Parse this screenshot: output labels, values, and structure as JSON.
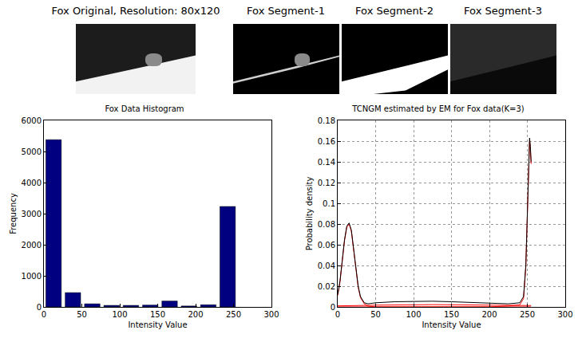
{
  "images": [
    "Fox Original, Resolution: 80x120",
    "Fox Segment-1",
    "Fox Segment-2",
    "Fox Segment-3"
  ],
  "chart_data": [
    {
      "type": "histogram",
      "title": "Fox Data Histogram",
      "x_label": "Intensity Value",
      "y_label": "Frequency",
      "bins": [
        0,
        25.5,
        51,
        76.5,
        102,
        127.5,
        153,
        178.5,
        204,
        229.5,
        255
      ],
      "values": [
        5380,
        460,
        100,
        50,
        50,
        60,
        190,
        30,
        70,
        3230
      ],
      "color": "#000080",
      "xlim": [
        0,
        300
      ],
      "xticks": [
        0,
        50,
        100,
        150,
        200,
        250,
        300
      ],
      "ylim": [
        0,
        6000
      ],
      "yticks": [
        0,
        1000,
        2000,
        3000,
        4000,
        5000,
        6000
      ],
      "grid": false
    },
    {
      "type": "line",
      "title": "TCNGM estimated by EM for Fox data(K=3)",
      "x_label": "Intensity Value",
      "y_label": "Probability density",
      "x": [
        0,
        3,
        6,
        9,
        12,
        15,
        18,
        21,
        24,
        27,
        30,
        35,
        40,
        50,
        75,
        100,
        125,
        150,
        175,
        200,
        225,
        240,
        245,
        248,
        250,
        251,
        252,
        253,
        254,
        255
      ],
      "series": [
        {
          "color": "#ff0000",
          "values": [
            0.011,
            0.024,
            0.044,
            0.064,
            0.077,
            0.08,
            0.073,
            0.055,
            0.035,
            0.019,
            0.009,
            0.003,
            0.0008,
            0,
            0,
            0,
            0,
            0,
            0,
            0,
            0,
            0,
            0,
            0,
            0,
            0,
            0,
            0,
            0,
            0
          ]
        },
        {
          "color": "#ff0000",
          "values": [
            0.001,
            0.001,
            0.001,
            0.001,
            0.001,
            0.001,
            0.001,
            0.001,
            0.0012,
            0.0012,
            0.0013,
            0.0014,
            0.0015,
            0.0017,
            0.002,
            0.0022,
            0.0022,
            0.0021,
            0.0019,
            0.0017,
            0.0015,
            0.0014,
            0.0013,
            0.0013,
            0.0013,
            0.0013,
            0.0013,
            0.0013,
            0.0013,
            0.0013
          ]
        },
        {
          "color": "#ff0000",
          "values": [
            0,
            0,
            0,
            0,
            0,
            0,
            0,
            0,
            0,
            0,
            0,
            0,
            0,
            0,
            0,
            0,
            0,
            0,
            0,
            0,
            0.001,
            0.002,
            0.008,
            0.038,
            0.088,
            0.118,
            0.153,
            0.161,
            0.153,
            0.138
          ]
        },
        {
          "color": "#000000",
          "values": [
            0.012,
            0.025,
            0.045,
            0.065,
            0.078,
            0.081,
            0.074,
            0.056,
            0.036,
            0.02,
            0.01,
            0.004,
            0.003,
            0.004,
            0.005,
            0.0055,
            0.0055,
            0.005,
            0.0045,
            0.004,
            0.003,
            0.004,
            0.01,
            0.04,
            0.09,
            0.12,
            0.155,
            0.163,
            0.155,
            0.14
          ]
        }
      ],
      "xlim": [
        0,
        300
      ],
      "xticks": [
        0,
        50,
        100,
        150,
        200,
        250,
        300
      ],
      "ylim": [
        0,
        0.18
      ],
      "yticks": [
        0,
        0.02,
        0.04,
        0.06,
        0.08,
        0.1,
        0.12,
        0.14,
        0.16,
        0.18
      ],
      "grid": true
    }
  ]
}
